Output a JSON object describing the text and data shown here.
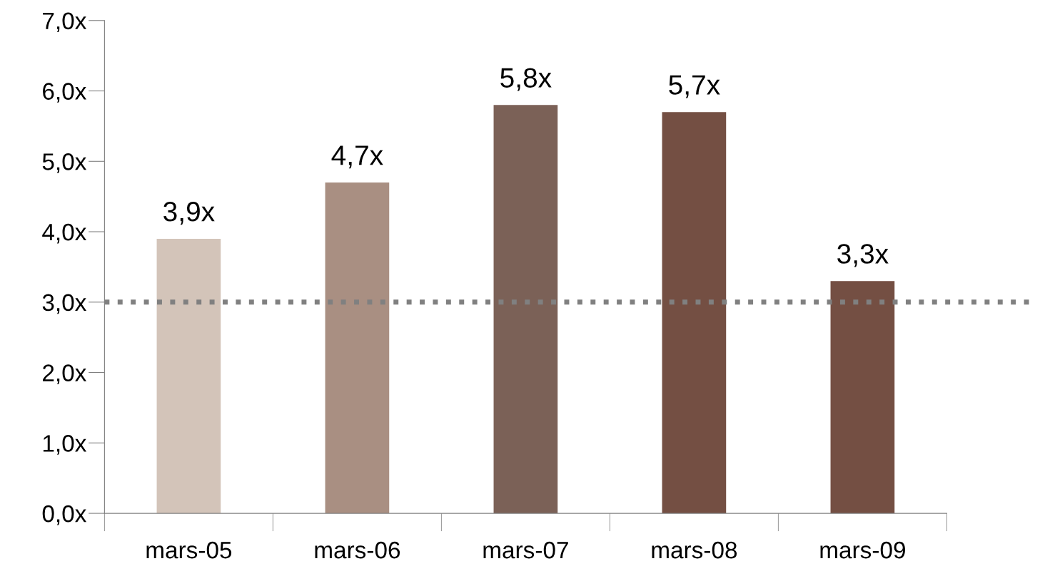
{
  "chart_data": {
    "type": "bar",
    "categories": [
      "mars-05",
      "mars-06",
      "mars-07",
      "mars-08",
      "mars-09"
    ],
    "values": [
      3.9,
      4.7,
      5.8,
      5.7,
      3.3
    ],
    "value_labels": [
      "3,9x",
      "4,7x",
      "5,8x",
      "5,7x",
      "3,3x"
    ],
    "colors": [
      "#d3c4b9",
      "#a98f82",
      "#7b6157",
      "#744f43",
      "#744f43"
    ],
    "ylim": [
      0,
      7
    ],
    "yticks": [
      {
        "value": 0,
        "label": "0,0x"
      },
      {
        "value": 1,
        "label": "1,0x"
      },
      {
        "value": 2,
        "label": "2,0x"
      },
      {
        "value": 3,
        "label": "3,0x"
      },
      {
        "value": 4,
        "label": "4,0x"
      },
      {
        "value": 5,
        "label": "5,0x"
      },
      {
        "value": 6,
        "label": "6,0x"
      },
      {
        "value": 7,
        "label": "7,0x"
      }
    ],
    "ref_lines": [
      {
        "axis": "y",
        "value": 3,
        "label": null,
        "color": "#808080",
        "line_style": "dotted"
      }
    ],
    "grid": false,
    "legend": false
  }
}
